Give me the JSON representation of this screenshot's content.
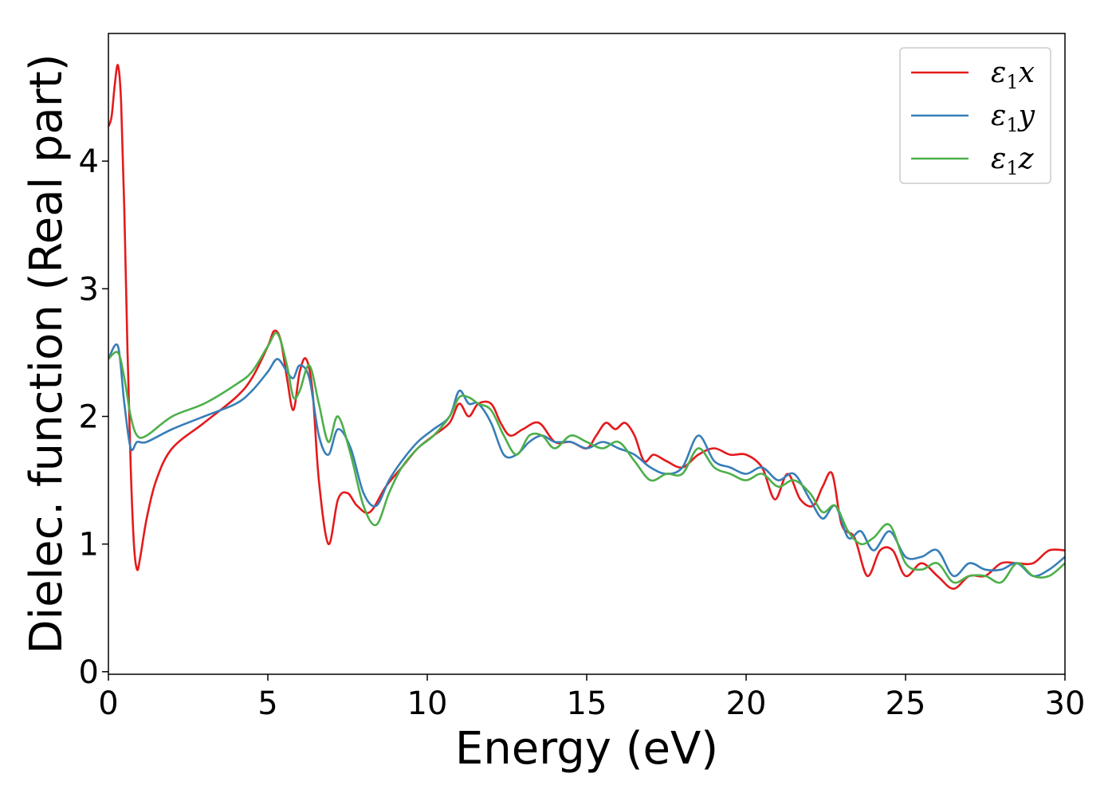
{
  "chart_data": {
    "type": "line",
    "xlabel": "Energy (eV)",
    "ylabel": "Dielec. function (Real part)",
    "xlim": [
      0,
      30
    ],
    "ylim": [
      -0.02,
      5.0
    ],
    "xticks": [
      0,
      5,
      10,
      15,
      20,
      25,
      30
    ],
    "yticks": [
      0,
      1,
      2,
      3,
      4
    ],
    "grid": false,
    "legend_position": "top-right",
    "series": [
      {
        "name": "ε1x",
        "label_main": "ε",
        "label_sub": "1",
        "label_tail": "x",
        "color": "#e41a1c",
        "x": [
          0,
          0.1,
          0.2,
          0.3,
          0.4,
          0.5,
          0.6,
          0.7,
          0.8,
          0.9,
          1.0,
          1.2,
          1.5,
          2,
          3,
          4,
          4.5,
          5,
          5.2,
          5.4,
          5.6,
          5.8,
          6.0,
          6.2,
          6.4,
          6.6,
          6.9,
          7.2,
          7.5,
          7.8,
          8.2,
          8.7,
          9.2,
          9.7,
          10.2,
          10.7,
          11.0,
          11.3,
          11.6,
          12.0,
          12.3,
          12.6,
          13.0,
          13.5,
          14.0,
          14.5,
          15.0,
          15.3,
          15.6,
          15.9,
          16.2,
          16.5,
          16.8,
          17.1,
          17.5,
          18.0,
          18.5,
          19.0,
          19.5,
          20.0,
          20.5,
          20.9,
          21.3,
          21.7,
          22.1,
          22.4,
          22.7,
          23.0,
          23.4,
          23.8,
          24.2,
          24.6,
          25.0,
          25.5,
          26.0,
          26.5,
          27.0,
          27.5,
          28.0,
          28.5,
          29.0,
          29.5,
          30.0
        ],
        "y": [
          4.27,
          4.35,
          4.6,
          4.75,
          4.45,
          3.6,
          2.5,
          1.6,
          1.0,
          0.8,
          0.9,
          1.2,
          1.5,
          1.75,
          1.95,
          2.15,
          2.3,
          2.55,
          2.67,
          2.6,
          2.3,
          2.05,
          2.35,
          2.45,
          2.2,
          1.5,
          1.0,
          1.35,
          1.4,
          1.3,
          1.25,
          1.45,
          1.6,
          1.75,
          1.85,
          1.95,
          2.1,
          2.0,
          2.1,
          2.1,
          1.95,
          1.85,
          1.9,
          1.95,
          1.8,
          1.8,
          1.75,
          1.85,
          1.95,
          1.9,
          1.95,
          1.85,
          1.65,
          1.7,
          1.65,
          1.6,
          1.7,
          1.75,
          1.7,
          1.7,
          1.6,
          1.35,
          1.55,
          1.35,
          1.3,
          1.45,
          1.55,
          1.15,
          1.05,
          0.75,
          0.95,
          0.95,
          0.75,
          0.85,
          0.75,
          0.65,
          0.75,
          0.75,
          0.85,
          0.85,
          0.85,
          0.95,
          0.95
        ]
      },
      {
        "name": "ε1y",
        "label_main": "ε",
        "label_sub": "1",
        "label_tail": "y",
        "color": "#377eb8",
        "x": [
          0,
          0.3,
          0.5,
          0.7,
          0.9,
          1.2,
          2,
          3,
          4,
          4.5,
          5,
          5.3,
          5.6,
          5.8,
          6.0,
          6.3,
          6.6,
          6.9,
          7.2,
          7.6,
          8.0,
          8.4,
          8.8,
          9.2,
          9.7,
          10.2,
          10.7,
          11.0,
          11.3,
          11.6,
          12.0,
          12.4,
          12.8,
          13.2,
          13.6,
          14.0,
          14.5,
          15.0,
          15.5,
          16.0,
          16.5,
          17.0,
          17.5,
          18.0,
          18.5,
          19.0,
          19.5,
          20.0,
          20.5,
          21.0,
          21.5,
          22.0,
          22.4,
          22.8,
          23.2,
          23.6,
          24.0,
          24.5,
          25.0,
          25.5,
          26.0,
          26.5,
          27.0,
          27.5,
          28.0,
          28.5,
          29.0,
          29.5,
          30.0
        ],
        "y": [
          2.45,
          2.55,
          2.1,
          1.75,
          1.8,
          1.8,
          1.9,
          2.0,
          2.1,
          2.2,
          2.35,
          2.45,
          2.35,
          2.3,
          2.4,
          2.3,
          1.85,
          1.7,
          1.9,
          1.75,
          1.4,
          1.3,
          1.5,
          1.65,
          1.8,
          1.9,
          2.0,
          2.2,
          2.1,
          2.1,
          1.95,
          1.7,
          1.7,
          1.8,
          1.85,
          1.8,
          1.8,
          1.75,
          1.8,
          1.75,
          1.7,
          1.6,
          1.55,
          1.6,
          1.85,
          1.65,
          1.6,
          1.55,
          1.6,
          1.5,
          1.55,
          1.35,
          1.2,
          1.3,
          1.05,
          1.1,
          0.95,
          1.1,
          0.9,
          0.9,
          0.95,
          0.75,
          0.85,
          0.8,
          0.8,
          0.85,
          0.75,
          0.8,
          0.9
        ]
      },
      {
        "name": "ε1z",
        "label_main": "ε",
        "label_sub": "1",
        "label_tail": "z",
        "color": "#4daf4a",
        "x": [
          0,
          0.3,
          0.5,
          0.7,
          0.9,
          1.2,
          2,
          3,
          4,
          4.5,
          5,
          5.3,
          5.6,
          5.8,
          6.0,
          6.3,
          6.6,
          6.9,
          7.2,
          7.6,
          8.0,
          8.4,
          8.8,
          9.2,
          9.7,
          10.2,
          10.7,
          11.0,
          11.3,
          11.6,
          12.0,
          12.4,
          12.8,
          13.2,
          13.6,
          14.0,
          14.5,
          15.0,
          15.5,
          16.0,
          16.5,
          17.0,
          17.5,
          18.0,
          18.5,
          19.0,
          19.5,
          20.0,
          20.5,
          21.0,
          21.5,
          22.0,
          22.4,
          22.8,
          23.2,
          23.6,
          24.0,
          24.5,
          25.0,
          25.5,
          26.0,
          26.5,
          27.0,
          27.5,
          28.0,
          28.5,
          29.0,
          29.5,
          30.0
        ],
        "y": [
          2.45,
          2.5,
          2.3,
          2.0,
          1.85,
          1.85,
          2.0,
          2.1,
          2.25,
          2.35,
          2.55,
          2.65,
          2.4,
          2.15,
          2.2,
          2.4,
          2.1,
          1.8,
          2.0,
          1.7,
          1.3,
          1.15,
          1.4,
          1.6,
          1.75,
          1.85,
          2.0,
          2.15,
          2.15,
          2.1,
          2.05,
          1.85,
          1.7,
          1.85,
          1.85,
          1.75,
          1.85,
          1.8,
          1.75,
          1.8,
          1.65,
          1.5,
          1.55,
          1.55,
          1.75,
          1.6,
          1.55,
          1.5,
          1.55,
          1.45,
          1.5,
          1.4,
          1.25,
          1.3,
          1.1,
          1.0,
          1.05,
          1.15,
          0.85,
          0.8,
          0.85,
          0.7,
          0.75,
          0.75,
          0.7,
          0.85,
          0.75,
          0.75,
          0.85
        ]
      }
    ]
  }
}
